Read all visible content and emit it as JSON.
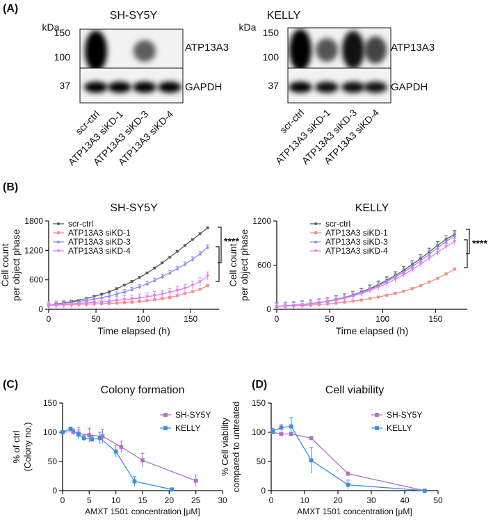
{
  "panels": {
    "A": {
      "letter": "(A)",
      "blots": [
        {
          "cell_line": "SH-SY5Y",
          "kda_label": "kDa",
          "top_markers": [
            "150",
            "100"
          ],
          "bottom_marker": "37",
          "top_protein": "ATP13A3",
          "bottom_protein": "GAPDH",
          "lanes": [
            "scr-ctrl",
            "ATP13A3 siKD-1",
            "ATP13A3 siKD-3",
            "ATP13A3 siKD-4"
          ],
          "top_band_intensity": [
            1.0,
            0.0,
            0.45,
            0.0
          ],
          "bottom_band_intensity": [
            1.0,
            1.0,
            1.0,
            1.0
          ]
        },
        {
          "cell_line": "KELLY",
          "kda_label": "kDa",
          "top_markers": [
            "150",
            "100"
          ],
          "bottom_marker": "37",
          "top_protein": "ATP13A3",
          "bottom_protein": "GAPDH",
          "lanes": [
            "scr-ctrl",
            "ATP13A3 siKD-1",
            "ATP13A3 siKD-3",
            "ATP13A3 siKD-4"
          ],
          "top_band_intensity": [
            1.0,
            0.5,
            0.9,
            0.6
          ],
          "bottom_band_intensity": [
            1.0,
            0.9,
            0.9,
            0.85
          ]
        }
      ]
    },
    "B": {
      "letter": "(B)"
    },
    "C": {
      "letter": "(C)"
    },
    "D": {
      "letter": "(D)"
    }
  },
  "colors": {
    "scr_ctrl": "#595959",
    "siKD1": "#f4908a",
    "siKD3": "#8b8cf0",
    "siKD4": "#e27ef1",
    "shsy5y": "#b070c8",
    "kelly": "#3a8fe0"
  },
  "chart_data": [
    {
      "id": "B1",
      "type": "line",
      "title": "SH-SY5Y",
      "xlabel": "Time elapsed (h)",
      "ylabel": [
        "Cell count",
        "per object phase"
      ],
      "xlim": [
        0,
        180
      ],
      "ylim": [
        0,
        1800
      ],
      "xticks": [
        "0",
        "50",
        "100",
        "150"
      ],
      "yticks": [
        "0",
        "600",
        "1200",
        "1800"
      ],
      "xtick_values": [
        0,
        50,
        100,
        150
      ],
      "ytick_values": [
        0,
        600,
        1200,
        1800
      ],
      "significance": "****",
      "x": [
        0,
        8,
        16,
        24,
        32,
        40,
        48,
        56,
        64,
        72,
        80,
        88,
        96,
        104,
        112,
        120,
        128,
        136,
        144,
        152,
        160,
        168
      ],
      "series": [
        {
          "name": "scr-ctrl",
          "color_key": "scr_ctrl",
          "marker": "circle",
          "values": [
            80,
            105,
            130,
            155,
            185,
            220,
            260,
            305,
            355,
            420,
            490,
            565,
            650,
            740,
            840,
            945,
            1060,
            1180,
            1300,
            1420,
            1540,
            1660
          ],
          "error": 20
        },
        {
          "name": "ATP13A3 siKD-1",
          "color_key": "siKD1",
          "marker": "square",
          "values": [
            80,
            85,
            90,
            95,
            100,
            105,
            110,
            115,
            120,
            125,
            135,
            145,
            160,
            175,
            195,
            215,
            240,
            275,
            320,
            360,
            410,
            480
          ],
          "error": 20
        },
        {
          "name": "ATP13A3 siKD-3",
          "color_key": "siKD3",
          "marker": "triangle",
          "values": [
            80,
            100,
            120,
            140,
            160,
            180,
            210,
            240,
            270,
            310,
            355,
            405,
            460,
            520,
            590,
            665,
            745,
            830,
            920,
            1020,
            1130,
            1270
          ],
          "error": 45
        },
        {
          "name": "ATP13A3 siKD-4",
          "color_key": "siKD4",
          "marker": "invtriangle",
          "values": [
            80,
            90,
            100,
            110,
            120,
            130,
            140,
            150,
            165,
            180,
            195,
            210,
            230,
            255,
            280,
            310,
            345,
            385,
            430,
            490,
            560,
            680
          ],
          "error": 80
        }
      ]
    },
    {
      "id": "B2",
      "type": "line",
      "title": "KELLY",
      "xlabel": "Time elapsed (h)",
      "ylabel": [
        "Cell count",
        "per object phase"
      ],
      "xlim": [
        0,
        180
      ],
      "ylim": [
        0,
        1200
      ],
      "xticks": [
        "0",
        "50",
        "100",
        "150"
      ],
      "yticks": [
        "0",
        "600",
        "1200"
      ],
      "xtick_values": [
        0,
        50,
        100,
        150
      ],
      "ytick_values": [
        0,
        600,
        1200
      ],
      "significance": "****",
      "x": [
        0,
        8,
        16,
        24,
        32,
        40,
        48,
        56,
        64,
        72,
        80,
        88,
        96,
        104,
        112,
        120,
        128,
        136,
        144,
        152,
        160,
        168
      ],
      "series": [
        {
          "name": "scr-ctrl",
          "color_key": "scr_ctrl",
          "marker": "circle",
          "values": [
            40,
            45,
            55,
            65,
            78,
            92,
            110,
            135,
            160,
            195,
            235,
            280,
            335,
            395,
            460,
            530,
            610,
            690,
            780,
            870,
            950,
            1020
          ],
          "error": 50
        },
        {
          "name": "ATP13A3 siKD-1",
          "color_key": "siKD1",
          "marker": "square",
          "values": [
            40,
            44,
            48,
            52,
            58,
            64,
            72,
            82,
            95,
            110,
            125,
            145,
            165,
            190,
            215,
            245,
            280,
            320,
            370,
            420,
            480,
            545
          ],
          "error": 15
        },
        {
          "name": "ATP13A3 siKD-3",
          "color_key": "siKD3",
          "marker": "triangle",
          "values": [
            40,
            45,
            55,
            65,
            78,
            92,
            110,
            132,
            158,
            190,
            228,
            270,
            320,
            378,
            440,
            505,
            580,
            660,
            745,
            835,
            920,
            1000
          ],
          "error": 50
        },
        {
          "name": "ATP13A3 siKD-4",
          "color_key": "siKD4",
          "marker": "invtriangle",
          "values": [
            40,
            44,
            52,
            62,
            74,
            88,
            105,
            125,
            150,
            180,
            215,
            255,
            300,
            350,
            410,
            470,
            540,
            615,
            695,
            775,
            850,
            920
          ],
          "error": 40
        }
      ]
    },
    {
      "id": "C",
      "type": "line",
      "title": "Colony formation",
      "xlabel": "AMXT 1501 concentration [μM]",
      "ylabel": [
        "% of ctrl",
        "(Colony no.)"
      ],
      "xlim": [
        0,
        30
      ],
      "ylim": [
        0,
        150
      ],
      "xticks": [
        "0",
        "5",
        "10",
        "15",
        "20",
        "25",
        "30"
      ],
      "yticks": [
        "0",
        "50",
        "100",
        "150"
      ],
      "xtick_values": [
        0,
        5,
        10,
        15,
        20,
        25,
        30
      ],
      "ytick_values": [
        0,
        50,
        100,
        150
      ],
      "series": [
        {
          "name": "SH-SY5Y",
          "color_key": "shsy5y",
          "marker": "square",
          "x": [
            0,
            2,
            3,
            5,
            7.5,
            11,
            15,
            25
          ],
          "values": [
            100,
            101,
            98,
            95,
            93,
            75,
            52,
            17
          ],
          "error": [
            3,
            5,
            10,
            12,
            12,
            10,
            12,
            10
          ]
        },
        {
          "name": "KELLY",
          "color_key": "kelly",
          "marker": "square",
          "x": [
            0,
            1.5,
            3,
            4,
            5.5,
            7,
            10,
            13.5,
            20.5
          ],
          "values": [
            100,
            106,
            96,
            90,
            88,
            90,
            67,
            16,
            2
          ],
          "error": [
            3,
            3,
            8,
            5,
            5,
            10,
            10,
            8,
            2
          ]
        }
      ]
    },
    {
      "id": "D",
      "type": "line",
      "title": "Cell viability",
      "xlabel": "AMXT 1501 concentration [μM]",
      "ylabel": [
        "% Cell viability",
        "compared to untreated"
      ],
      "xlim": [
        0,
        50
      ],
      "ylim": [
        0,
        150
      ],
      "xticks": [
        "0",
        "10",
        "20",
        "30",
        "40",
        "50"
      ],
      "yticks": [
        "0",
        "50",
        "100",
        "150"
      ],
      "xtick_values": [
        0,
        10,
        20,
        30,
        40,
        50
      ],
      "ytick_values": [
        0,
        50,
        100,
        150
      ],
      "series": [
        {
          "name": "SH-SY5Y",
          "color_key": "shsy5y",
          "marker": "square",
          "x": [
            0.5,
            3,
            6,
            12,
            23,
            46
          ],
          "values": [
            100,
            97,
            97,
            90,
            29,
            0
          ],
          "error": [
            3,
            3,
            3,
            3,
            3,
            2
          ]
        },
        {
          "name": "KELLY",
          "color_key": "kelly",
          "marker": "square",
          "x": [
            0.5,
            3,
            6,
            12,
            23,
            46
          ],
          "values": [
            102,
            108,
            110,
            52,
            10,
            0
          ],
          "error": [
            5,
            5,
            15,
            22,
            8,
            2
          ]
        }
      ]
    }
  ]
}
